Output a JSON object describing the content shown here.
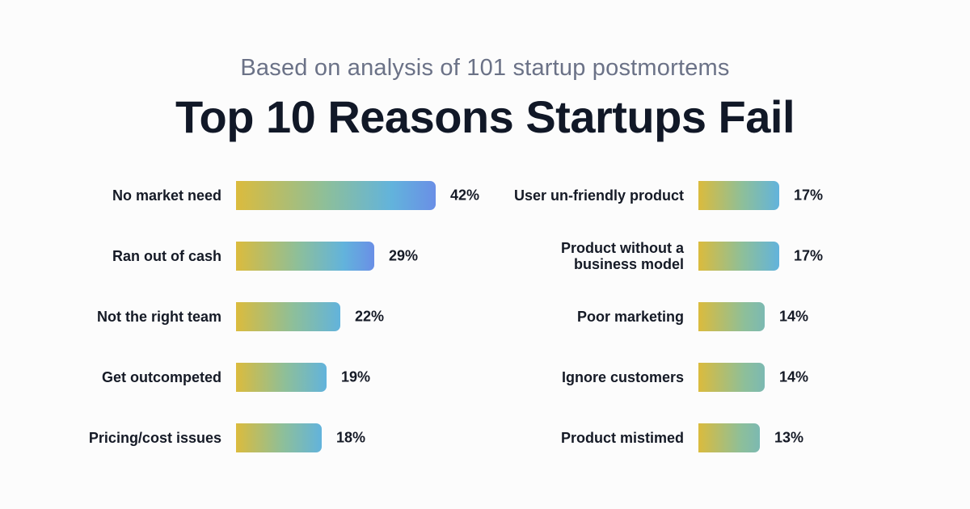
{
  "header": {
    "subtitle": "Based on analysis of 101 startup postmortems",
    "title": "Top 10 Reasons Startups Fail"
  },
  "colors": {
    "gradient_start": "#dbbb3d",
    "gradient_mid": "#8dbf9a",
    "gradient_teal": "#62b3dc",
    "gradient_end": "#6a8fe6"
  },
  "chart_data": {
    "type": "bar",
    "orientation": "horizontal",
    "title": "Top 10 Reasons Startups Fail",
    "subtitle": "Based on analysis of 101 startup postmortems",
    "unit": "%",
    "xlim": [
      0,
      42
    ],
    "columns": [
      {
        "categories": [
          "No market need",
          "Ran out of cash",
          "Not the right team",
          "Get outcompeted",
          "Pricing/cost issues"
        ],
        "values": [
          42,
          29,
          22,
          19,
          18
        ],
        "labels": [
          "42%",
          "29%",
          "22%",
          "19%",
          "18%"
        ]
      },
      {
        "categories": [
          "User un-friendly product",
          "Product without a business model",
          "Poor marketing",
          "Ignore customers",
          "Product mistimed"
        ],
        "values": [
          17,
          17,
          14,
          14,
          13
        ],
        "labels": [
          "17%",
          "17%",
          "14%",
          "14%",
          "13%"
        ]
      }
    ]
  }
}
